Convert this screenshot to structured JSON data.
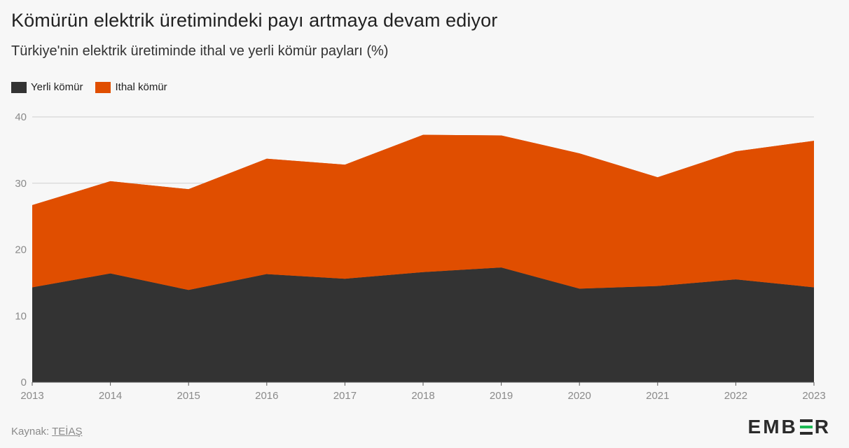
{
  "header": {
    "title": "Kömürün elektrik üretimindeki payı artmaya devam ediyor",
    "subtitle": "Türkiye'nin elektrik üretiminde ithal ve yerli kömür payları (%)"
  },
  "legend": [
    {
      "label": "Yerli kömür",
      "color": "#333333"
    },
    {
      "label": "Ithal kömür",
      "color": "#e04e00"
    }
  ],
  "footer": {
    "source_prefix": "Kaynak: ",
    "source_link": "TEİAŞ",
    "logo_left": "EMB",
    "logo_right": "R"
  },
  "chart_data": {
    "type": "area",
    "stacked": true,
    "x": [
      "2013",
      "2014",
      "2015",
      "2016",
      "2017",
      "2018",
      "2019",
      "2020",
      "2021",
      "2022",
      "2023"
    ],
    "series": [
      {
        "name": "Yerli kömür",
        "color": "#333333",
        "values": [
          14.3,
          16.4,
          13.9,
          16.3,
          15.6,
          16.6,
          17.3,
          14.1,
          14.5,
          15.5,
          14.3
        ]
      },
      {
        "name": "Ithal kömür",
        "color": "#e04e00",
        "values": [
          12.4,
          13.9,
          15.2,
          17.4,
          17.2,
          20.7,
          19.9,
          20.4,
          16.4,
          19.3,
          22.1
        ]
      }
    ],
    "ylim": [
      0,
      40
    ],
    "yticks": [
      0,
      10,
      20,
      30,
      40
    ],
    "grid": true,
    "legend_position": "top-left"
  }
}
